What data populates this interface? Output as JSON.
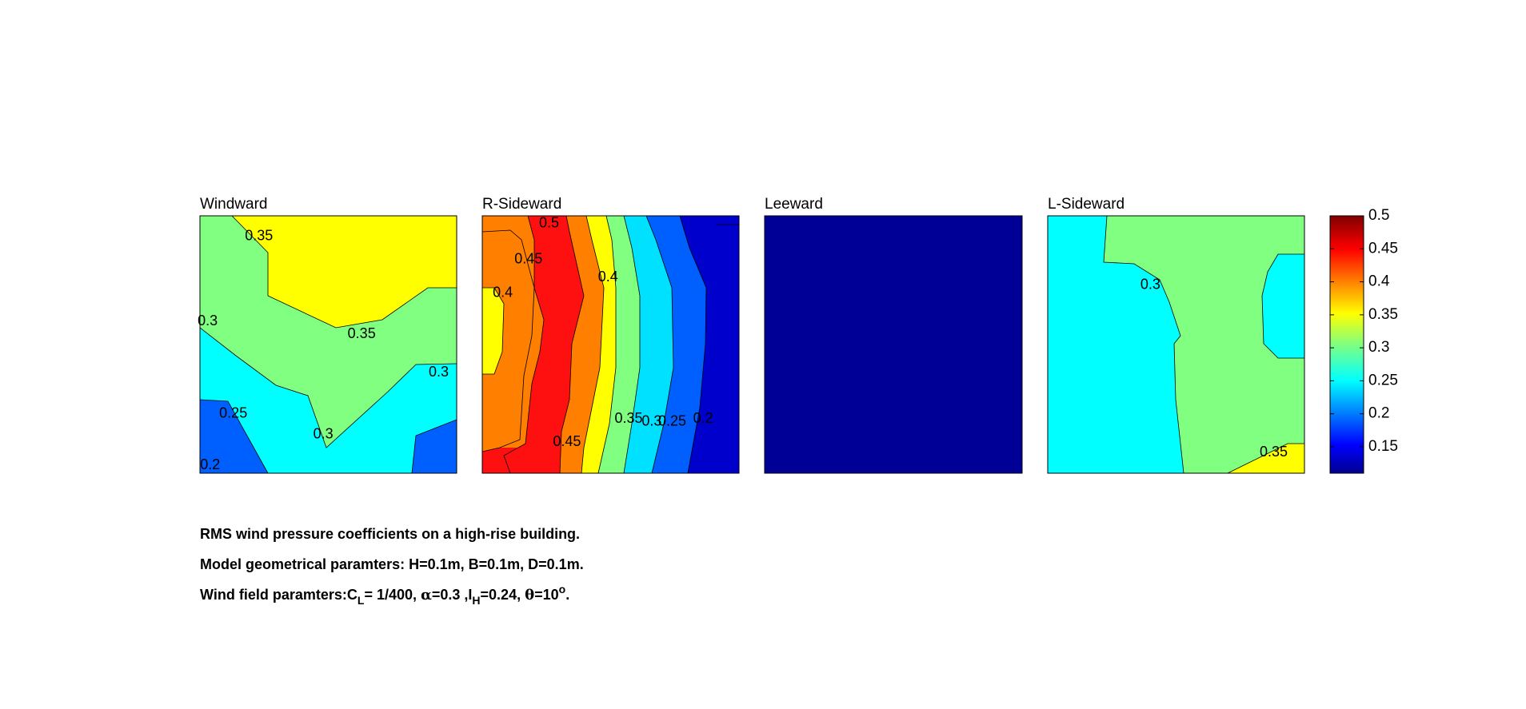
{
  "chart_data": {
    "type": "contour",
    "colormap": "jet",
    "clim": [
      0.11,
      0.5
    ],
    "panels": [
      {
        "title": "Windward",
        "bands": [
          {
            "level": 0.25,
            "color": "#00a0ff"
          },
          {
            "level": 0.3,
            "color": "#00ffff"
          },
          {
            "level": 0.35,
            "color": "#80ff80"
          },
          {
            "level": 0.4,
            "color": "#ffff00"
          }
        ],
        "contour_labels": [
          {
            "text": "0.35",
            "x": 0.23,
            "y": 0.92
          },
          {
            "text": "0.3",
            "x": 0.03,
            "y": 0.59
          },
          {
            "text": "0.35",
            "x": 0.63,
            "y": 0.54
          },
          {
            "text": "0.3",
            "x": 0.93,
            "y": 0.39
          },
          {
            "text": "0.25",
            "x": 0.13,
            "y": 0.23
          },
          {
            "text": "0.3",
            "x": 0.48,
            "y": 0.15
          },
          {
            "text": "0.2",
            "x": 0.04,
            "y": 0.03
          }
        ]
      },
      {
        "title": "R-Sideward",
        "bands": [
          {
            "level": 0.2,
            "color": "#0000cd"
          },
          {
            "level": 0.25,
            "color": "#0060ff"
          },
          {
            "level": 0.3,
            "color": "#00e0ff"
          },
          {
            "level": 0.35,
            "color": "#80ff80"
          },
          {
            "level": 0.4,
            "color": "#ffff00"
          },
          {
            "level": 0.45,
            "color": "#ff7f00"
          },
          {
            "level": 0.5,
            "color": "#ff1010"
          }
        ],
        "contour_labels": [
          {
            "text": "0.5",
            "x": 0.26,
            "y": 0.97
          },
          {
            "text": "0.45",
            "x": 0.18,
            "y": 0.83
          },
          {
            "text": "0.4",
            "x": 0.08,
            "y": 0.7
          },
          {
            "text": "0.4",
            "x": 0.49,
            "y": 0.76
          },
          {
            "text": "0.45",
            "x": 0.33,
            "y": 0.12
          },
          {
            "text": "0.35",
            "x": 0.57,
            "y": 0.21
          },
          {
            "text": "0.3",
            "x": 0.66,
            "y": 0.2
          },
          {
            "text": "0.25",
            "x": 0.74,
            "y": 0.2
          },
          {
            "text": "0.2",
            "x": 0.86,
            "y": 0.21
          }
        ]
      },
      {
        "title": "Leeward",
        "bands": [
          {
            "level": 0.15,
            "color": "#000096"
          }
        ],
        "contour_labels": []
      },
      {
        "title": "L-Sideward",
        "bands": [
          {
            "level": 0.3,
            "color": "#00ffff"
          },
          {
            "level": 0.35,
            "color": "#80ff80"
          },
          {
            "level": 0.4,
            "color": "#ffff00"
          }
        ],
        "contour_labels": [
          {
            "text": "0.3",
            "x": 0.4,
            "y": 0.73
          },
          {
            "text": "0.35",
            "x": 0.88,
            "y": 0.08
          }
        ]
      }
    ],
    "colorbar": {
      "ticks": [
        "0.5",
        "0.45",
        "0.4",
        "0.35",
        "0.3",
        "0.25",
        "0.2",
        "0.15"
      ],
      "tick_values": [
        0.5,
        0.45,
        0.4,
        0.35,
        0.3,
        0.25,
        0.2,
        0.15
      ]
    }
  },
  "captions": {
    "line1": "RMS wind pressure coefficients on a high-rise building.",
    "line2": "Model geometrical paramters: H=0.1m, B=0.1m, D=0.1m.",
    "line3": {
      "prefix": "Wind field paramters:C",
      "sub1": "L",
      "mid1": "= 1/400, ",
      "alpha": "α",
      "mid2": "=0.3 ,I",
      "sub2": "H",
      "mid3": "=0.24, ",
      "theta": "θ",
      "mid4": "=10",
      "sup": "o",
      "end": "."
    }
  }
}
